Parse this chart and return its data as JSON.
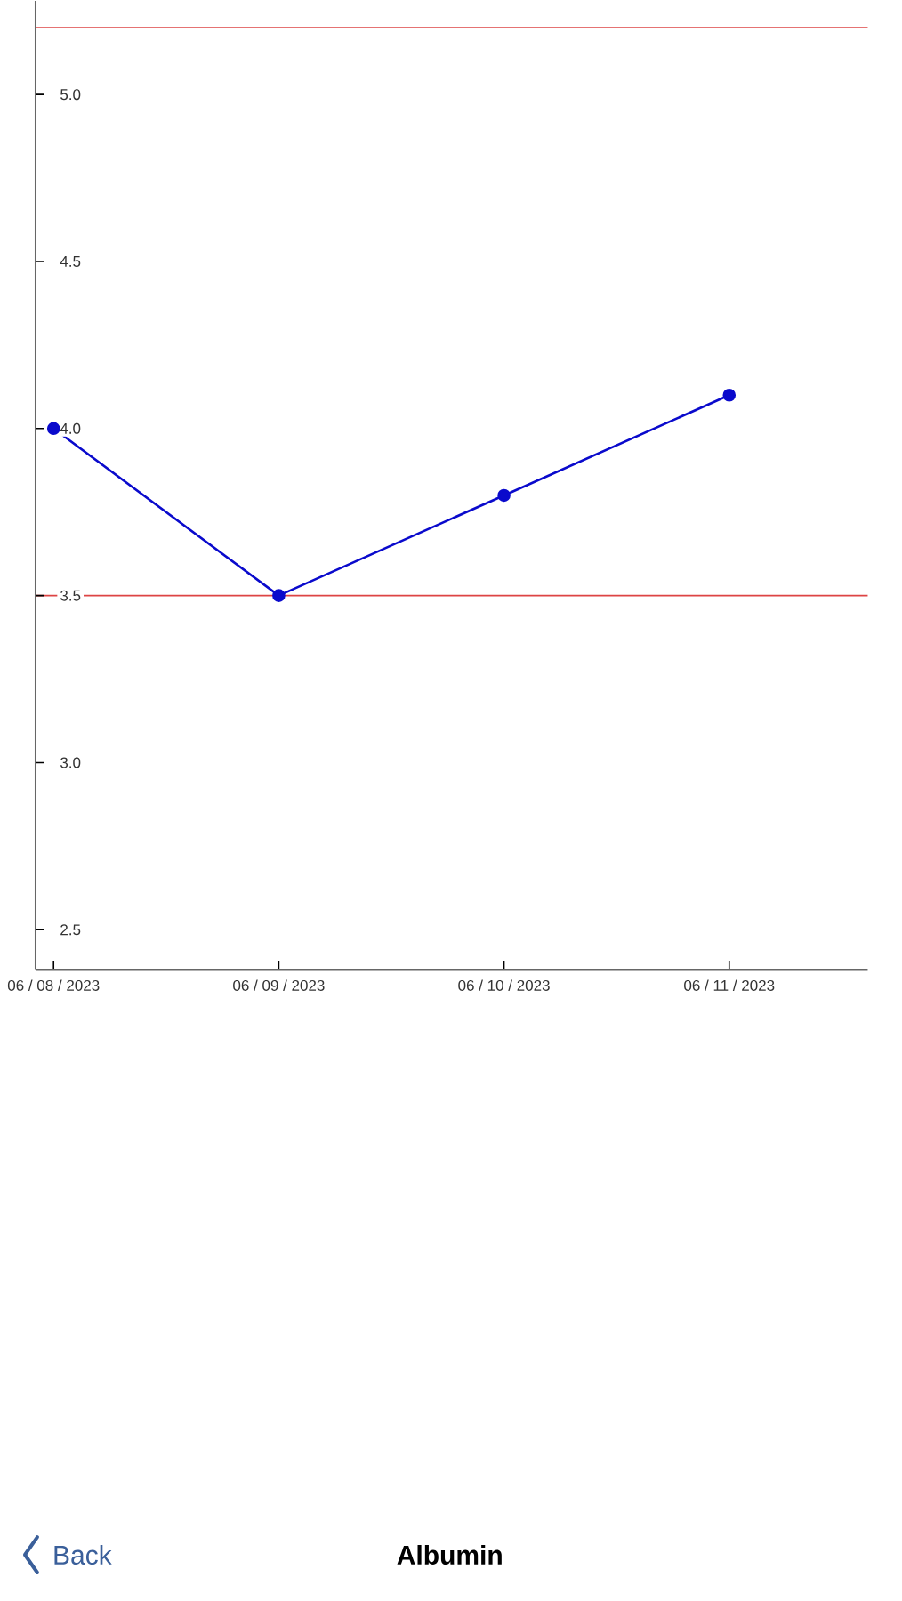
{
  "chart_data": {
    "type": "line",
    "title": "Albumin",
    "categories": [
      "06 / 08 / 2023",
      "06 / 09 / 2023",
      "06 / 10 / 2023",
      "06 / 11 / 2023"
    ],
    "series": [
      {
        "color": "#0a0acc",
        "values": [
          4.0,
          3.5,
          3.8,
          4.1
        ]
      }
    ],
    "ylim": [
      2.38,
      5.28
    ],
    "yticks": [
      2.5,
      {
        "value": 3,
        "label": "3.0"
      },
      3.5,
      {
        "value": 4,
        "label": "4.0"
      },
      4.5,
      {
        "value": 5,
        "label": "5.0"
      }
    ],
    "marker": "circle",
    "line_style": "solid",
    "ref_lines": [
      {
        "axis": "y",
        "value": 5.2,
        "color": "#dd4444"
      },
      {
        "axis": "y",
        "value": 3.5,
        "color": "#dd4444"
      }
    ],
    "annotations": [
      "Back"
    ]
  }
}
